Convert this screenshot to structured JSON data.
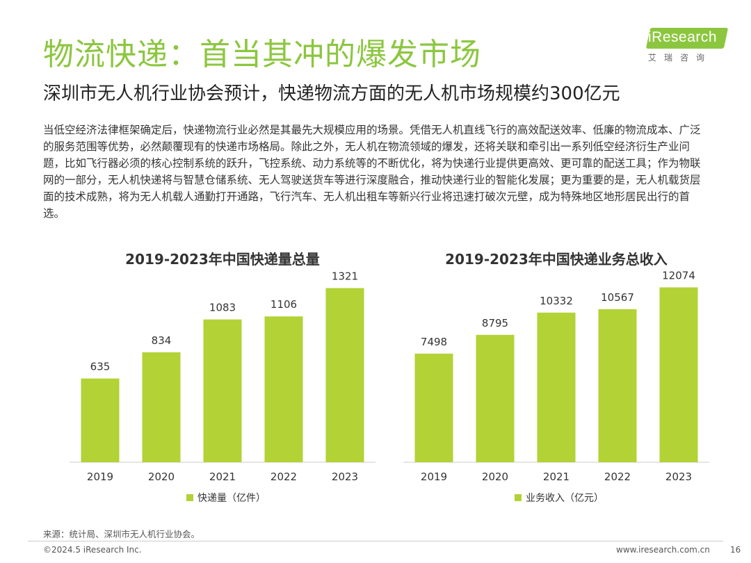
{
  "header": {
    "title": "物流快递：首当其冲的爆发市场",
    "subtitle": "深圳市无人机行业协会预计，快递物流方面的无人机市场规模约300亿元"
  },
  "logo": {
    "brand": "iResearch",
    "sub": "艾瑞咨询"
  },
  "body_text": "当低空经济法律框架确定后，快递物流行业必然是其最先大规模应用的场景。凭借无人机直线飞行的高效配送效率、低廉的物流成本、广泛的服务范围等优势，必然颠覆现有的快递市场格局。除此之外，无人机在物流领域的爆发，还将关联和牵引出一系列低空经济衍生产业问题，比如飞行器必须的核心控制系统的跃升，飞控系统、动力系统等的不断优化，将为快递行业提供更高效、更可靠的配送工具；作为物联网的一部分，无人机快递将与智慧仓储系统、无人驾驶送货车等进行深度融合，推动快递行业的智能化发展；更为重要的是，无人机载货层面的技术成熟，将为无人机载人通勤打开通路，飞行汽车、无人机出租车等新兴行业将迅速打破次元壁，成为特殊地区地形居民出行的首选。",
  "colors": {
    "title": "#8cc63f",
    "bar": "#b2d235"
  },
  "chart_data": [
    {
      "type": "bar",
      "title": "2019-2023年中国快递量总量",
      "categories": [
        "2019",
        "2020",
        "2021",
        "2022",
        "2023"
      ],
      "series": [
        {
          "name": "快递量（亿件）",
          "values": [
            635,
            834,
            1083,
            1106,
            1321
          ]
        }
      ],
      "ylim": [
        0,
        1450
      ],
      "grid": false,
      "legend": "bottom-center"
    },
    {
      "type": "bar",
      "title": "2019-2023年中国快递业务总收入",
      "categories": [
        "2019",
        "2020",
        "2021",
        "2022",
        "2023"
      ],
      "series": [
        {
          "name": "业务收入（亿元）",
          "values": [
            7498,
            8795,
            10332,
            10567,
            12074
          ]
        }
      ],
      "ylim": [
        0,
        13200
      ],
      "grid": false,
      "legend": "bottom-center"
    }
  ],
  "footer": {
    "source": "来源：统计局、深圳市无人机行业协会。",
    "copyright": "©2024.5 iResearch Inc.",
    "website": "www.iresearch.com.cn",
    "page": "16"
  }
}
